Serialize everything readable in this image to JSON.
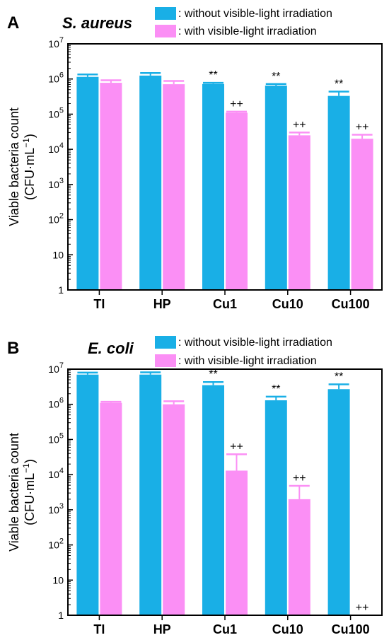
{
  "colors": {
    "without": "#19afe6",
    "with": "#fb8ff5"
  },
  "panels": [
    {
      "letter": "A",
      "organism": "S. aureus",
      "chart_data": {
        "type": "bar",
        "scale": "log",
        "ylim": [
          1,
          10000000
        ],
        "yticks": [
          {
            "base": "10",
            "exp": "7"
          },
          {
            "base": "10",
            "exp": "6"
          },
          {
            "base": "10",
            "exp": "5"
          },
          {
            "base": "10",
            "exp": "4"
          },
          {
            "base": "10",
            "exp": "3"
          },
          {
            "base": "10",
            "exp": "2"
          },
          {
            "base": "10",
            "exp": ""
          },
          {
            "base": "1",
            "exp": ""
          }
        ],
        "ylabel_line1": "Viable bacteria count",
        "ylabel_line2_prefix": "(CFU·mL",
        "ylabel_line2_sup": "−1",
        "ylabel_line2_suffix": ")",
        "categories": [
          "TI",
          "HP",
          "Cu1",
          "Cu10",
          "Cu100"
        ],
        "legend": [
          {
            "key": "without",
            "label": ": without visible-light irradiation"
          },
          {
            "key": "with",
            "label": ": with visible-light irradiation"
          }
        ],
        "series": [
          {
            "key": "without",
            "values": [
              1150000,
              1250000,
              720000,
              650000,
              330000
            ],
            "errors": [
              1350000,
              1480000,
              780000,
              720000,
              440000
            ],
            "sig": [
              "",
              "",
              "**",
              "**",
              "**"
            ]
          },
          {
            "key": "with",
            "values": [
              780000,
              710000,
              110000,
              25000,
              20000
            ],
            "errors": [
              920000,
              880000,
              118000,
              30000,
              26000
            ],
            "sig": [
              "",
              "",
              "++",
              "++",
              "++"
            ]
          }
        ]
      }
    },
    {
      "letter": "B",
      "organism": "E. coli",
      "chart_data": {
        "type": "bar",
        "scale": "log",
        "ylim": [
          1,
          10000000
        ],
        "yticks": [
          {
            "base": "10",
            "exp": "7"
          },
          {
            "base": "10",
            "exp": "6"
          },
          {
            "base": "10",
            "exp": "5"
          },
          {
            "base": "10",
            "exp": "4"
          },
          {
            "base": "10",
            "exp": "3"
          },
          {
            "base": "10",
            "exp": "2"
          },
          {
            "base": "10",
            "exp": ""
          },
          {
            "base": "1",
            "exp": ""
          }
        ],
        "ylabel_line1": "Viable bacteria count",
        "ylabel_line2_prefix": "(CFU·mL",
        "ylabel_line2_sup": "−1",
        "ylabel_line2_suffix": ")",
        "categories": [
          "TI",
          "HP",
          "Cu1",
          "Cu10",
          "Cu100"
        ],
        "legend": [
          {
            "key": "without",
            "label": ": without visible-light irradiation"
          },
          {
            "key": "with",
            "label": ": with visible-light irradiation"
          }
        ],
        "series": [
          {
            "key": "without",
            "values": [
              7000000,
              7000000,
              3500000,
              1300000,
              2700000
            ],
            "errors": [
              8000000,
              8100000,
              4300000,
              1650000,
              3700000
            ],
            "sig": [
              "",
              "",
              "**",
              "**",
              "**"
            ]
          },
          {
            "key": "with",
            "values": [
              1100000,
              1000000,
              13000,
              2000,
              1
            ],
            "errors": [
              1180000,
              1220000,
              38000,
              4800,
              null
            ],
            "sig": [
              "",
              "",
              "++",
              "++",
              "++"
            ]
          }
        ]
      }
    }
  ]
}
